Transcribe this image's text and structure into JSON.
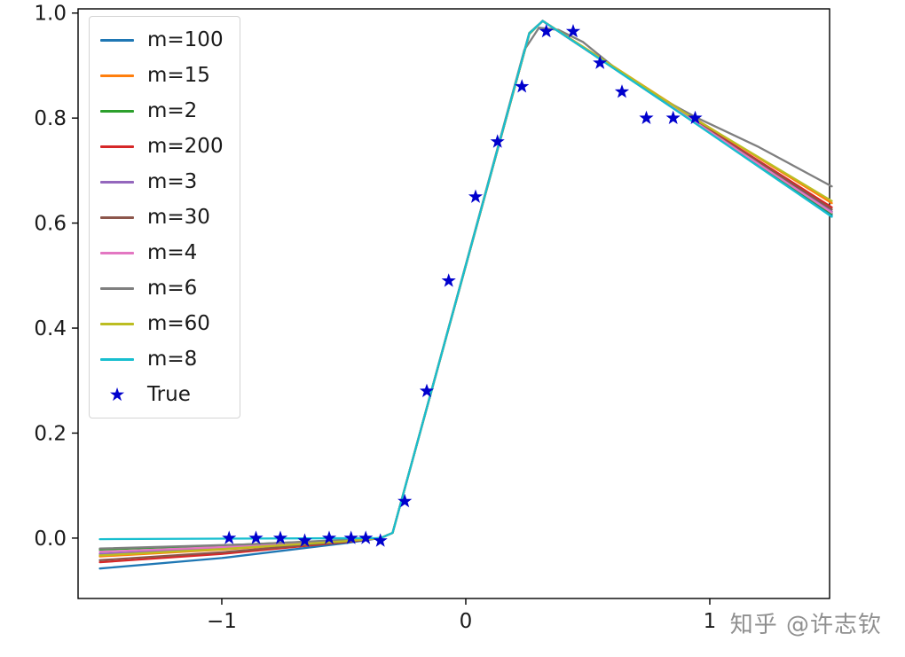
{
  "watermark": {
    "text": "知乎 @许志钦"
  },
  "chart_data": {
    "type": "line",
    "title": "",
    "xlabel": "",
    "ylabel": "",
    "grid": false,
    "legend_position": "upper left",
    "xlim": [
      -1.589,
      1.491
    ],
    "ylim": [
      -0.115,
      1.008
    ],
    "xticks": [
      {
        "value": -1,
        "label": "−1"
      },
      {
        "value": 0,
        "label": "0"
      },
      {
        "value": 1,
        "label": "1"
      }
    ],
    "yticks": [
      {
        "value": 0.0,
        "label": "0.0"
      },
      {
        "value": 0.2,
        "label": "0.2"
      },
      {
        "value": 0.4,
        "label": "0.4"
      },
      {
        "value": 0.6,
        "label": "0.6"
      },
      {
        "value": 0.8,
        "label": "0.8"
      },
      {
        "value": 1.0,
        "label": "1.0"
      }
    ],
    "series": [
      {
        "name": "m=100",
        "color": "#1f77b4",
        "points": [
          [
            -1.5,
            -0.058
          ],
          [
            -1.0,
            -0.038
          ],
          [
            -0.5,
            -0.01
          ],
          [
            -0.35,
            0.0
          ],
          [
            -0.3,
            0.01
          ],
          [
            0.26,
            0.96
          ],
          [
            0.315,
            0.985
          ],
          [
            0.5,
            0.928
          ],
          [
            0.9,
            0.803
          ],
          [
            1.5,
            0.615
          ]
        ]
      },
      {
        "name": "m=15",
        "color": "#ff7f0e",
        "points": [
          [
            -1.5,
            -0.035
          ],
          [
            -1.0,
            -0.022
          ],
          [
            -0.5,
            -0.006
          ],
          [
            -0.35,
            0.0
          ],
          [
            -0.3,
            0.01
          ],
          [
            0.26,
            0.96
          ],
          [
            0.315,
            0.985
          ],
          [
            0.5,
            0.93
          ],
          [
            0.9,
            0.81
          ],
          [
            1.5,
            0.638
          ]
        ]
      },
      {
        "name": "m=2",
        "color": "#2ca02c",
        "points": [
          [
            -1.5,
            -0.022
          ],
          [
            -1.0,
            -0.014
          ],
          [
            -0.5,
            -0.004
          ],
          [
            -0.35,
            0.0
          ],
          [
            -0.3,
            0.01
          ],
          [
            0.26,
            0.962
          ],
          [
            0.315,
            0.985
          ],
          [
            0.5,
            0.928
          ],
          [
            0.9,
            0.805
          ],
          [
            1.5,
            0.618
          ]
        ]
      },
      {
        "name": "m=200",
        "color": "#d62728",
        "points": [
          [
            -1.5,
            -0.046
          ],
          [
            -1.0,
            -0.03
          ],
          [
            -0.5,
            -0.008
          ],
          [
            -0.35,
            0.0
          ],
          [
            -0.3,
            0.01
          ],
          [
            0.26,
            0.96
          ],
          [
            0.315,
            0.985
          ],
          [
            0.5,
            0.929
          ],
          [
            0.9,
            0.807
          ],
          [
            1.5,
            0.63
          ]
        ]
      },
      {
        "name": "m=3",
        "color": "#9467bd",
        "points": [
          [
            -1.5,
            -0.03
          ],
          [
            -1.0,
            -0.019
          ],
          [
            -0.5,
            -0.005
          ],
          [
            -0.35,
            0.0
          ],
          [
            -0.3,
            0.01
          ],
          [
            0.26,
            0.961
          ],
          [
            0.315,
            0.985
          ],
          [
            0.5,
            0.928
          ],
          [
            0.9,
            0.805
          ],
          [
            1.5,
            0.622
          ]
        ]
      },
      {
        "name": "m=30",
        "color": "#8c564b",
        "points": [
          [
            -1.5,
            -0.042
          ],
          [
            -1.0,
            -0.027
          ],
          [
            -0.5,
            -0.007
          ],
          [
            -0.35,
            0.0
          ],
          [
            -0.3,
            0.01
          ],
          [
            0.26,
            0.96
          ],
          [
            0.315,
            0.985
          ],
          [
            0.5,
            0.929
          ],
          [
            0.9,
            0.806
          ],
          [
            1.5,
            0.626
          ]
        ]
      },
      {
        "name": "m=4",
        "color": "#e377c2",
        "points": [
          [
            -1.5,
            -0.026
          ],
          [
            -1.0,
            -0.017
          ],
          [
            -0.5,
            -0.005
          ],
          [
            -0.35,
            0.0
          ],
          [
            -0.3,
            0.01
          ],
          [
            0.26,
            0.961
          ],
          [
            0.315,
            0.985
          ],
          [
            0.5,
            0.928
          ],
          [
            0.9,
            0.805
          ],
          [
            1.5,
            0.62
          ]
        ]
      },
      {
        "name": "m=6",
        "color": "#7f7f7f",
        "points": [
          [
            -1.5,
            -0.02
          ],
          [
            -0.9,
            -0.012
          ],
          [
            -0.35,
            0.0
          ],
          [
            -0.3,
            0.01
          ],
          [
            0.24,
            0.93
          ],
          [
            0.3,
            0.972
          ],
          [
            0.38,
            0.968
          ],
          [
            0.48,
            0.945
          ],
          [
            0.6,
            0.9
          ],
          [
            0.75,
            0.85
          ],
          [
            0.95,
            0.8
          ],
          [
            1.2,
            0.745
          ],
          [
            1.5,
            0.67
          ]
        ]
      },
      {
        "name": "m=60",
        "color": "#bcbd22",
        "points": [
          [
            -1.5,
            -0.033
          ],
          [
            -1.0,
            -0.021
          ],
          [
            -0.5,
            -0.006
          ],
          [
            -0.35,
            0.0
          ],
          [
            -0.3,
            0.01
          ],
          [
            0.26,
            0.96
          ],
          [
            0.315,
            0.985
          ],
          [
            0.5,
            0.93
          ],
          [
            0.9,
            0.809
          ],
          [
            1.5,
            0.642
          ]
        ]
      },
      {
        "name": "m=8",
        "color": "#17becf",
        "points": [
          [
            -1.5,
            -0.002
          ],
          [
            -1.0,
            -0.001
          ],
          [
            -0.35,
            0.0
          ],
          [
            -0.3,
            0.01
          ],
          [
            0.26,
            0.961
          ],
          [
            0.315,
            0.985
          ],
          [
            0.5,
            0.928
          ],
          [
            0.9,
            0.803
          ],
          [
            1.5,
            0.612
          ]
        ]
      }
    ],
    "scatter": {
      "name": "True",
      "marker": "star",
      "color": "#0000cd",
      "points": [
        [
          -0.97,
          0.0
        ],
        [
          -0.86,
          0.0
        ],
        [
          -0.76,
          0.0
        ],
        [
          -0.66,
          -0.005
        ],
        [
          -0.56,
          0.0
        ],
        [
          -0.47,
          0.0
        ],
        [
          -0.41,
          0.0
        ],
        [
          -0.35,
          -0.005
        ],
        [
          -0.25,
          0.07
        ],
        [
          -0.16,
          0.28
        ],
        [
          -0.07,
          0.49
        ],
        [
          0.04,
          0.65
        ],
        [
          0.13,
          0.755
        ],
        [
          0.23,
          0.86
        ],
        [
          0.33,
          0.965
        ],
        [
          0.44,
          0.965
        ],
        [
          0.55,
          0.905
        ],
        [
          0.64,
          0.85
        ],
        [
          0.74,
          0.8
        ],
        [
          0.85,
          0.8
        ],
        [
          0.94,
          0.8
        ]
      ]
    }
  }
}
